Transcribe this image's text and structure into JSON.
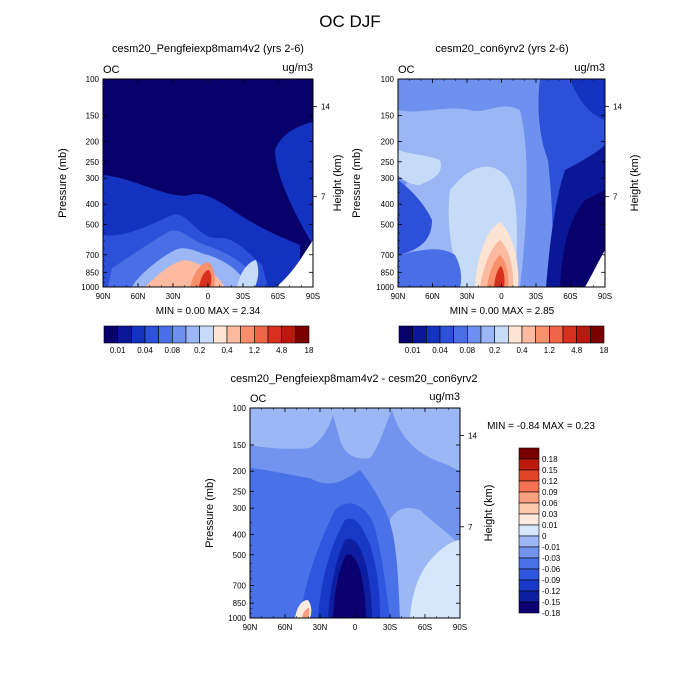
{
  "figure_title": "OC DJF",
  "panels": {
    "p1": {
      "title": "cesm20_Pengfeiexp8mam4v2 (yrs 2-6)",
      "var": "OC",
      "units": "ug/m3",
      "ylabel": "Pressure (mb)",
      "rlabel": "Height (km)",
      "stats": "MIN =   0.00   MAX =   2.34"
    },
    "p2": {
      "title": "cesm20_con6yrv2 (yrs 2-6)",
      "var": "OC",
      "units": "ug/m3",
      "ylabel": "Pressure (mb)",
      "rlabel": "Height (km)",
      "stats": "MIN =   0.00   MAX =   2.85"
    },
    "p3": {
      "title": "cesm20_Pengfeiexp8mam4v2 - cesm20_con6yrv2",
      "var": "OC",
      "units": "ug/m3",
      "ylabel": "Pressure (mb)",
      "rlabel": "Height (km)",
      "stats": "MIN =  -0.84   MAX =   0.23"
    }
  },
  "colors": {
    "abs": [
      "#08006b",
      "#0a1898",
      "#1432c0",
      "#2c50d8",
      "#4a6ee6",
      "#6e90ee",
      "#9ab6f4",
      "#c6dbf8",
      "#fde3d2",
      "#fcbba0",
      "#f8906c",
      "#ef6548",
      "#d7301f",
      "#b81a10",
      "#7a0000"
    ],
    "diff": [
      "#0a0070",
      "#0d1ea0",
      "#1838c8",
      "#2e56de",
      "#4a72e8",
      "#7294ee",
      "#9cb8f4",
      "#d6e6fb",
      "#fdebe0",
      "#fcc8ae",
      "#f9a07e",
      "#f47252",
      "#e2442a",
      "#be1a0e",
      "#7a0000"
    ]
  },
  "chart_data": [
    {
      "type": "heatmap",
      "title": "cesm20_Pengfeiexp8mam4v2 (yrs 2-6)",
      "ylabel": "Pressure (mb)",
      "y2label": "Height (km)",
      "x_ticks": [
        "90N",
        "60N",
        "30N",
        "0",
        "30S",
        "60S",
        "90S"
      ],
      "y_ticks": [
        "100",
        "150",
        "200",
        "250",
        "300",
        "400",
        "500",
        "700",
        "850",
        "1000"
      ],
      "y2_ticks": [
        "14",
        "7"
      ],
      "colorbar": [
        "0.01",
        "0.04",
        "0.08",
        "0.2",
        "0.4",
        "1.2",
        "4.8",
        "18"
      ],
      "min": 0.0,
      "max": 2.34
    },
    {
      "type": "heatmap",
      "title": "cesm20_con6yrv2 (yrs 2-6)",
      "ylabel": "Pressure (mb)",
      "y2label": "Height (km)",
      "x_ticks": [
        "90N",
        "60N",
        "30N",
        "0",
        "30S",
        "60S",
        "90S"
      ],
      "y_ticks": [
        "100",
        "150",
        "200",
        "250",
        "300",
        "400",
        "500",
        "700",
        "850",
        "1000"
      ],
      "y2_ticks": [
        "14",
        "7"
      ],
      "colorbar": [
        "0.01",
        "0.04",
        "0.08",
        "0.2",
        "0.4",
        "1.2",
        "4.8",
        "18"
      ],
      "min": 0.0,
      "max": 2.85
    },
    {
      "type": "heatmap",
      "title": "cesm20_Pengfeiexp8mam4v2 - cesm20_con6yrv2",
      "ylabel": "Pressure (mb)",
      "y2label": "Height (km)",
      "x_ticks": [
        "90N",
        "60N",
        "30N",
        "0",
        "30S",
        "60S",
        "90S"
      ],
      "y_ticks": [
        "100",
        "150",
        "200",
        "250",
        "300",
        "400",
        "500",
        "700",
        "850",
        "1000"
      ],
      "y2_ticks": [
        "14",
        "7"
      ],
      "colorbar": [
        "0.18",
        "0.15",
        "0.12",
        "0.09",
        "0.06",
        "0.03",
        "0.01",
        "0",
        "-0.01",
        "-0.03",
        "-0.06",
        "-0.09",
        "-0.12",
        "-0.15",
        "-0.18"
      ],
      "min": -0.84,
      "max": 0.23
    }
  ]
}
